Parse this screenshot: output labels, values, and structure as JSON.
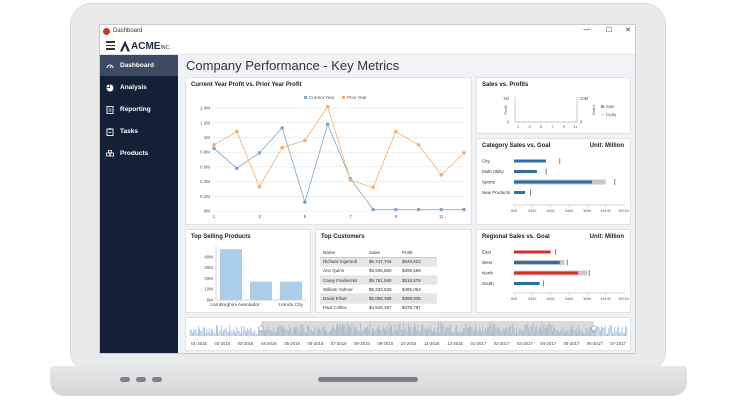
{
  "window": {
    "title": "Dashboard",
    "minimize": "—",
    "maximize": "☐",
    "close": "✕"
  },
  "brand": {
    "name": "ACME",
    "suffix": "INC."
  },
  "nav": [
    {
      "label": "Dashboard",
      "icon": "dashboard-icon",
      "active": true
    },
    {
      "label": "Analysis",
      "icon": "pie-chart-icon",
      "active": false
    },
    {
      "label": "Reporting",
      "icon": "report-icon",
      "active": false
    },
    {
      "label": "Tasks",
      "icon": "tasks-icon",
      "active": false
    },
    {
      "label": "Products",
      "icon": "products-icon",
      "active": false
    }
  ],
  "page_title": "Company Performance - Key Metrics",
  "colors": {
    "sidebar": "#142035",
    "blue": "#7fa7cf",
    "orange": "#f4b070",
    "red": "#d9302c",
    "darkblue": "#2f6fa8"
  },
  "panels": {
    "profit": "Current Year Profit vs. Prior Year Profit",
    "sales_profits": "Sales vs. Profits",
    "category": "Category Sales vs. Goal",
    "category_unit": "Unit: Million",
    "top_products": "Top Selling Products",
    "top_customers": "Top Customers",
    "regional": "Regional Sales vs. Goal",
    "regional_unit": "Unit: Million"
  },
  "customers": {
    "headers": [
      "Name",
      "Sales",
      "Profit"
    ],
    "rows": [
      [
        "Richard Ingersoll",
        "$6,747,704",
        "$549,622"
      ],
      [
        "Ann Quinn",
        "$5,935,560",
        "$395,596"
      ],
      [
        "Carey Fredericks",
        "$5,761,560",
        "$518,578"
      ],
      [
        "William Yahner",
        "$5,333,829",
        "$485,054"
      ],
      [
        "David Elliott",
        "$5,096,388",
        "$389,935"
      ],
      [
        "Paul Collins",
        "$4,528,397",
        "$378,797"
      ]
    ]
  },
  "chart_data": [
    {
      "type": "line",
      "title": "Current Year Profit vs. Prior Year Profit",
      "x": [
        1,
        2,
        3,
        4,
        5,
        6,
        7,
        8,
        9,
        10,
        11,
        12
      ],
      "x_ticks": [
        "1",
        "3",
        "5",
        "7",
        "9",
        "11"
      ],
      "y_ticks": [
        "0M",
        "0.2M",
        "0.4M",
        "0.6M",
        "0.8M",
        "1M",
        "1.2M",
        "1.4M"
      ],
      "ylim": [
        0,
        1.4
      ],
      "legend_position": "top",
      "series": [
        {
          "name": "Current Year",
          "values": [
            0.85,
            0.58,
            0.79,
            1.13,
            0.12,
            1.18,
            0.44,
            0.02,
            0.02,
            0.02,
            0.02,
            0.02
          ]
        },
        {
          "name": "Prior Year",
          "values": [
            0.9,
            1.08,
            0.33,
            0.86,
            0.96,
            1.42,
            0.42,
            0.32,
            1.08,
            0.9,
            0.49,
            0.79
          ]
        }
      ]
    },
    {
      "type": "bar",
      "title": "Sales vs. Profits",
      "x_ticks": [
        "1",
        "3",
        "5",
        "7",
        "9",
        "11"
      ],
      "left_axis": {
        "label": "Profit",
        "ticks": [
          "0",
          "1M"
        ]
      },
      "right_axis": {
        "label": "Sales",
        "ticks": [
          "0",
          "10M"
        ]
      },
      "legend_position": "right",
      "series": [
        {
          "name": "Sale"
        },
        {
          "name": "Profit"
        }
      ]
    },
    {
      "type": "bar",
      "title": "Category Sales vs. Goal",
      "categories": [
        "City",
        "Multi Utility",
        "Sports",
        "New Products"
      ],
      "x_ticks": [
        "¥40",
        "¥420",
        "¥440",
        "¥460",
        "¥480",
        "¥4100",
        "¥4120"
      ],
      "xlim": [
        0,
        120
      ],
      "values": [
        35,
        25,
        85,
        12
      ],
      "goal": [
        50,
        35,
        110,
        18
      ],
      "band": [
        0,
        0,
        100,
        0
      ]
    },
    {
      "type": "bar",
      "title": "Top Selling Products",
      "categories": [
        "Lamborghini Aventador",
        "",
        "Honda City"
      ],
      "y_ticks": [
        "0M",
        "10M",
        "20M",
        "30M",
        "40M"
      ],
      "ylim": [
        0,
        50
      ],
      "values": [
        47,
        17,
        17
      ]
    },
    {
      "type": "bar",
      "title": "Regional Sales vs. Goal",
      "categories": [
        "East",
        "West",
        "North",
        "South"
      ],
      "x_ticks": [
        "¥40",
        "¥420",
        "¥440",
        "¥460",
        "¥480",
        "¥4100",
        "¥4120"
      ],
      "xlim": [
        0,
        120
      ],
      "values": [
        40,
        50,
        70,
        28
      ],
      "goal": [
        45,
        58,
        82,
        32
      ],
      "band": [
        0,
        55,
        80,
        0
      ],
      "bar_colors": [
        "#d9302c",
        "#2f6fa8",
        "#d9302c",
        "#2f6fa8"
      ]
    },
    {
      "type": "area",
      "x_ticks": [
        "01-2016",
        "02-2016",
        "03-2016",
        "04-2016",
        "05-2016",
        "06-2016",
        "07-2016",
        "08-2016",
        "09-2016",
        "10-2016",
        "11-2016",
        "12-2016",
        "01-2017",
        "02-2017",
        "03-2017",
        "04-2017",
        "05-2017",
        "06-2017",
        "07-2017"
      ]
    }
  ]
}
